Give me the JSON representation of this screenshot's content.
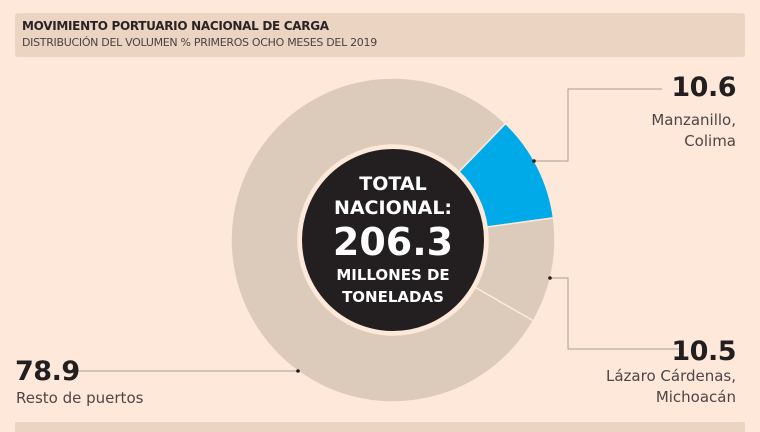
{
  "chart_data": {
    "type": "pie",
    "title": "MOVIMIENTO PORTUARIO NACIONAL DE CARGA",
    "subtitle": "DISTRIBUCIÓN DEL VOLUMEN % PRIMEROS OCHO MESES DEL 2019",
    "categories": [
      "Manzanillo, Colima",
      "Lázaro Cárdenas, Michoacán",
      "Resto de puertos"
    ],
    "values": [
      10.6,
      10.5,
      78.9
    ],
    "value_labels": [
      "10.6",
      "10.5",
      "78.9"
    ],
    "colors": [
      "#00a9e8",
      "#dccbbb",
      "#dccbbb"
    ],
    "donut": true,
    "center_text": {
      "line1": "TOTAL",
      "line2": "NACIONAL:",
      "value": "206.3",
      "line3": "MILLONES DE",
      "line4": "TONELADAS"
    },
    "center_color": "#231f20"
  }
}
